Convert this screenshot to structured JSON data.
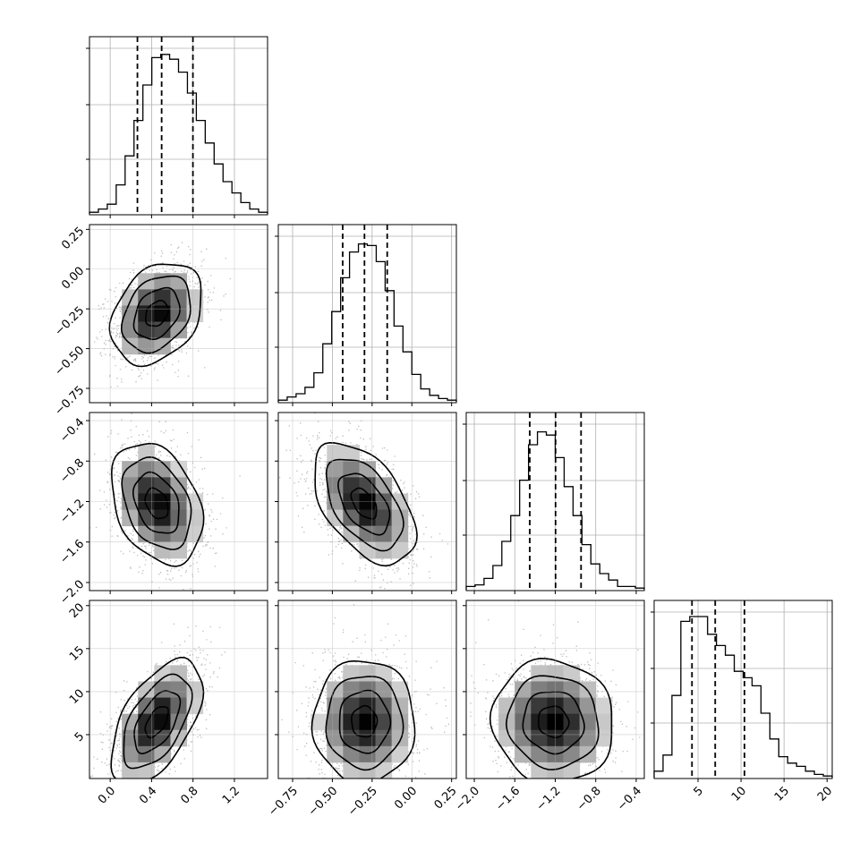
{
  "chart_data": {
    "type": "corner",
    "n_params": 4,
    "grid": true,
    "params": [
      {
        "range": [
          -0.2,
          1.52
        ],
        "ticks": [
          0.0,
          0.4,
          0.8,
          1.2
        ],
        "tick_labels": [
          "0.0",
          "0.4",
          "0.8",
          "1.2"
        ],
        "quantiles": [
          0.263,
          0.497,
          0.799
        ]
      },
      {
        "range": [
          -0.84,
          0.28
        ],
        "ticks": [
          -0.75,
          -0.5,
          -0.25,
          0.0,
          0.25
        ],
        "tick_labels": [
          "−0.75",
          "−0.50",
          "−0.25",
          "0.00",
          "0.25"
        ],
        "quantiles": [
          -0.435,
          -0.298,
          -0.155
        ]
      },
      {
        "range": [
          -2.08,
          -0.32
        ],
        "ticks": [
          -2.0,
          -1.6,
          -1.2,
          -0.8,
          -0.4
        ],
        "tick_labels": [
          "−2.0",
          "−1.6",
          "−1.2",
          "−0.8",
          "−0.4"
        ],
        "quantiles": [
          -1.452,
          -1.197,
          -0.945
        ]
      },
      {
        "range": [
          -0.1,
          20.6
        ],
        "ticks": [
          5,
          10,
          15,
          20
        ],
        "tick_labels": [
          "5",
          "10",
          "15",
          "20"
        ],
        "quantiles": [
          4.3,
          7.0,
          10.4
        ]
      }
    ],
    "histograms": [
      [
        0.01,
        0.03,
        0.06,
        0.18,
        0.36,
        0.58,
        0.8,
        0.97,
        0.99,
        0.96,
        0.88,
        0.75,
        0.58,
        0.44,
        0.31,
        0.2,
        0.13,
        0.07,
        0.03,
        0.01
      ],
      [
        0.01,
        0.03,
        0.05,
        0.09,
        0.18,
        0.36,
        0.56,
        0.77,
        0.93,
        0.98,
        0.97,
        0.87,
        0.69,
        0.47,
        0.31,
        0.17,
        0.08,
        0.04,
        0.02,
        0.01
      ],
      [
        0.02,
        0.03,
        0.07,
        0.15,
        0.3,
        0.46,
        0.68,
        0.9,
        0.98,
        0.96,
        0.82,
        0.64,
        0.46,
        0.28,
        0.16,
        0.1,
        0.06,
        0.02,
        0.02,
        0.01
      ],
      [
        0.04,
        0.14,
        0.51,
        0.97,
        1.0,
        1.0,
        0.89,
        0.82,
        0.76,
        0.66,
        0.62,
        0.57,
        0.4,
        0.24,
        0.13,
        0.09,
        0.07,
        0.04,
        0.02,
        0.01
      ]
    ],
    "pairs": [
      {
        "row": 1,
        "col": 0,
        "center": [
          0.45,
          -0.28
        ],
        "sigma": [
          0.22,
          0.16
        ],
        "corr": 0.3
      },
      {
        "row": 2,
        "col": 0,
        "center": [
          0.45,
          -1.22
        ],
        "sigma": [
          0.22,
          0.3
        ],
        "corr": -0.32
      },
      {
        "row": 2,
        "col": 1,
        "center": [
          -0.3,
          -1.22
        ],
        "sigma": [
          0.16,
          0.3
        ],
        "corr": -0.5
      },
      {
        "row": 3,
        "col": 0,
        "center": [
          0.45,
          6.5
        ],
        "sigma": [
          0.22,
          3.6
        ],
        "corr": 0.55
      },
      {
        "row": 3,
        "col": 1,
        "center": [
          -0.3,
          6.5
        ],
        "sigma": [
          0.16,
          3.6
        ],
        "corr": 0.0
      },
      {
        "row": 3,
        "col": 2,
        "center": [
          -1.22,
          6.5
        ],
        "sigma": [
          0.3,
          3.6
        ],
        "corr": -0.05
      }
    ]
  }
}
